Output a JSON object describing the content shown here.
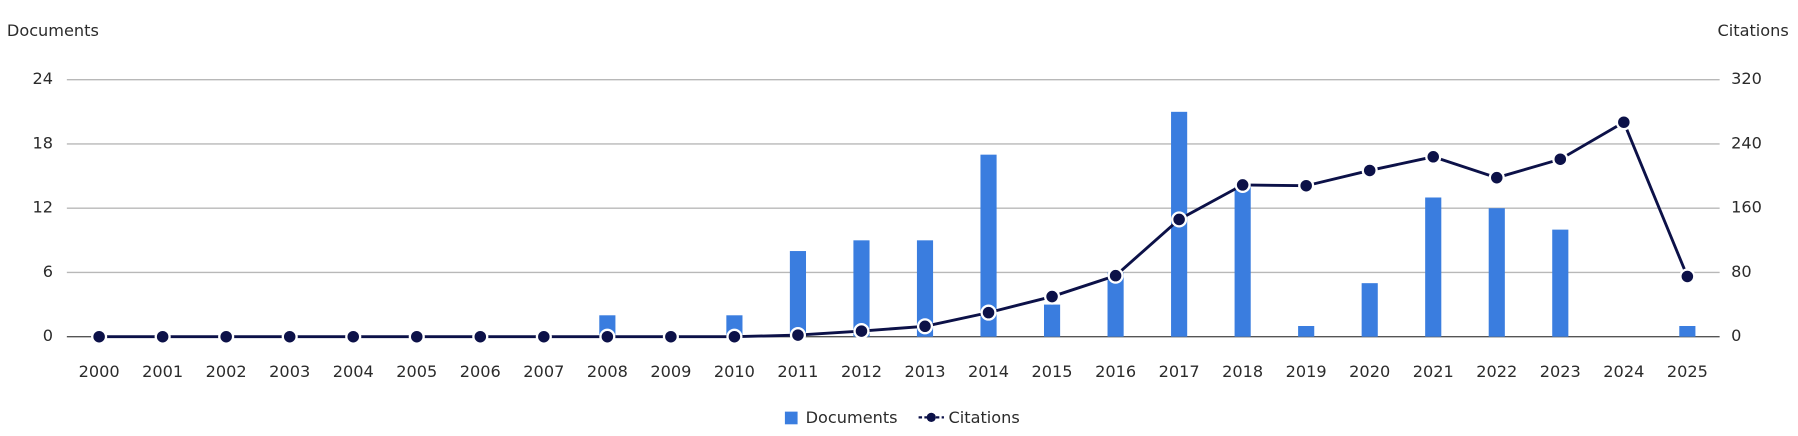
{
  "chart_data": {
    "type": "bar-line",
    "y_label": "Documents",
    "y2_label": "Citations",
    "categories": [
      "2000",
      "2001",
      "2002",
      "2003",
      "2004",
      "2005",
      "2006",
      "2007",
      "2008",
      "2009",
      "2010",
      "2011",
      "2012",
      "2013",
      "2014",
      "2015",
      "2016",
      "2017",
      "2018",
      "2019",
      "2020",
      "2021",
      "2022",
      "2023",
      "2024",
      "2025"
    ],
    "series": [
      {
        "name": "Documents",
        "type": "bar",
        "color": "#3a7ddf",
        "values": [
          0,
          0,
          0,
          0,
          0,
          0,
          0,
          0,
          2,
          0,
          2,
          8,
          9,
          9,
          17,
          3,
          6,
          21,
          14,
          1,
          5,
          13,
          12,
          10,
          0,
          1
        ]
      },
      {
        "name": "Citations",
        "type": "line",
        "axis": "y2",
        "color": "#0c1148",
        "values": [
          0,
          0,
          0,
          0,
          0,
          0,
          0,
          0,
          0,
          0,
          0,
          2,
          7,
          13,
          30,
          50,
          76,
          146,
          189,
          188,
          207,
          224,
          198,
          221,
          267,
          75
        ]
      }
    ],
    "ylim": [
      0,
      24
    ],
    "yticks": [
      0,
      6,
      12,
      18,
      24
    ],
    "y2lim": [
      0,
      320
    ],
    "y2ticks": [
      0,
      80,
      160,
      240,
      320
    ],
    "grid": true,
    "legend": "bottom"
  }
}
